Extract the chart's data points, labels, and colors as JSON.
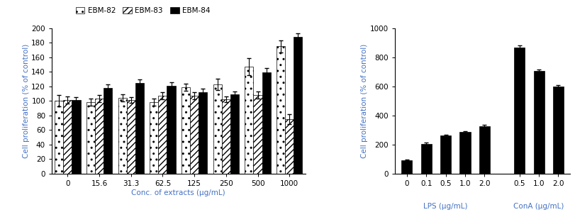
{
  "left": {
    "categories": [
      "0",
      "15.6",
      "31.3",
      "62.5",
      "125",
      "250",
      "500",
      "1000"
    ],
    "ebm82": [
      100,
      98,
      104,
      98,
      119,
      123,
      147,
      175
    ],
    "ebm83": [
      101,
      103,
      101,
      107,
      107,
      102,
      108,
      75
    ],
    "ebm84": [
      101,
      118,
      125,
      121,
      112,
      109,
      139,
      188
    ],
    "ebm82_err": [
      8,
      5,
      5,
      5,
      5,
      8,
      12,
      8
    ],
    "ebm83_err": [
      5,
      5,
      4,
      5,
      5,
      4,
      5,
      7
    ],
    "ebm84_err": [
      4,
      5,
      5,
      5,
      5,
      4,
      6,
      5
    ],
    "ylabel": "Cell proliferation (% of control)",
    "xlabel": "Conc. of extracts (μg/mL)",
    "ylim": [
      0,
      200
    ],
    "yticks": [
      0,
      20,
      40,
      60,
      80,
      100,
      120,
      140,
      160,
      180,
      200
    ]
  },
  "right": {
    "lps_cats": [
      "0",
      "0.1",
      "0.5",
      "1.0",
      "2.0"
    ],
    "lps_vals": [
      90,
      205,
      260,
      285,
      325
    ],
    "lps_err": [
      5,
      8,
      8,
      8,
      10
    ],
    "cona_cats": [
      "0.5",
      "1.0",
      "2.0"
    ],
    "cona_vals": [
      865,
      705,
      600
    ],
    "cona_err": [
      15,
      12,
      10
    ],
    "ylabel": "Cell proliferation (% of control)",
    "lps_xlabel": "LPS (μg/mL)",
    "cona_xlabel": "ConA (μg/mL)",
    "ylim": [
      0,
      1000
    ],
    "yticks": [
      0,
      200,
      400,
      600,
      800,
      1000
    ]
  },
  "legend_labels": [
    "EBM-82",
    "EBM-83",
    "EBM-84"
  ],
  "bar_width": 0.27,
  "label_color": "#4472c4",
  "tick_color": "black",
  "fontsize": 7.5
}
